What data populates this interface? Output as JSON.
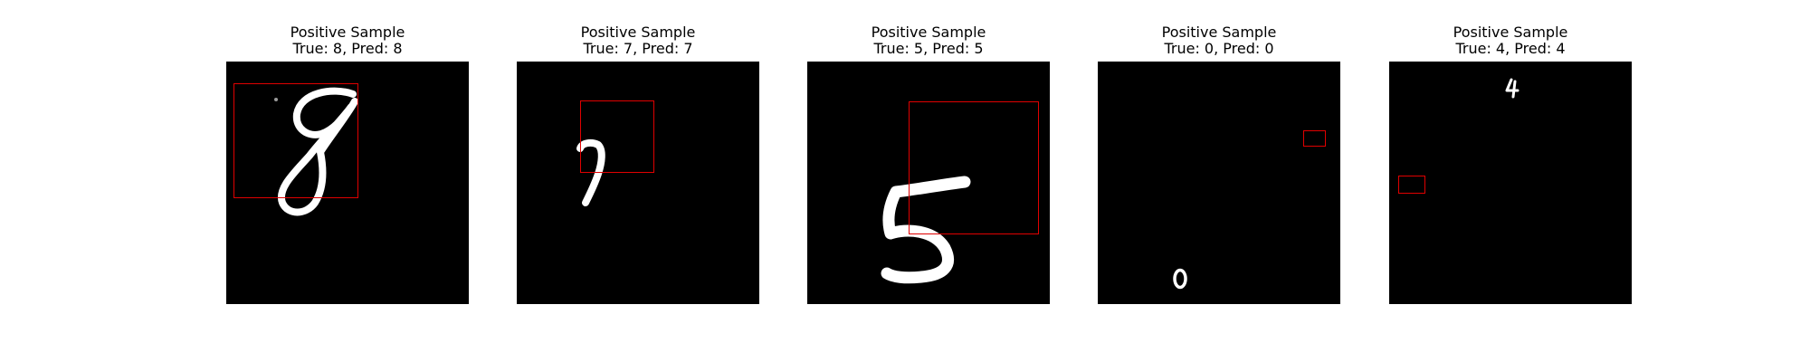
{
  "panels": [
    {
      "title": "Positive Sample",
      "subtitle": "True: 8, Pred: 8",
      "digit_icon": "digit-8-glyph"
    },
    {
      "title": "Positive Sample",
      "subtitle": "True: 7, Pred: 7",
      "digit_icon": "digit-7-glyph"
    },
    {
      "title": "Positive Sample",
      "subtitle": "True: 5, Pred: 5",
      "digit_icon": "digit-5-glyph"
    },
    {
      "title": "Positive Sample",
      "subtitle": "True: 0, Pred: 0",
      "digit_icon": "digit-0-glyph"
    },
    {
      "title": "Positive Sample",
      "subtitle": "True: 4, Pred: 4",
      "digit_icon": "digit-4-glyph"
    }
  ],
  "colors": {
    "background": "#000000",
    "digit": "#ffffff",
    "box": "#e00000"
  }
}
